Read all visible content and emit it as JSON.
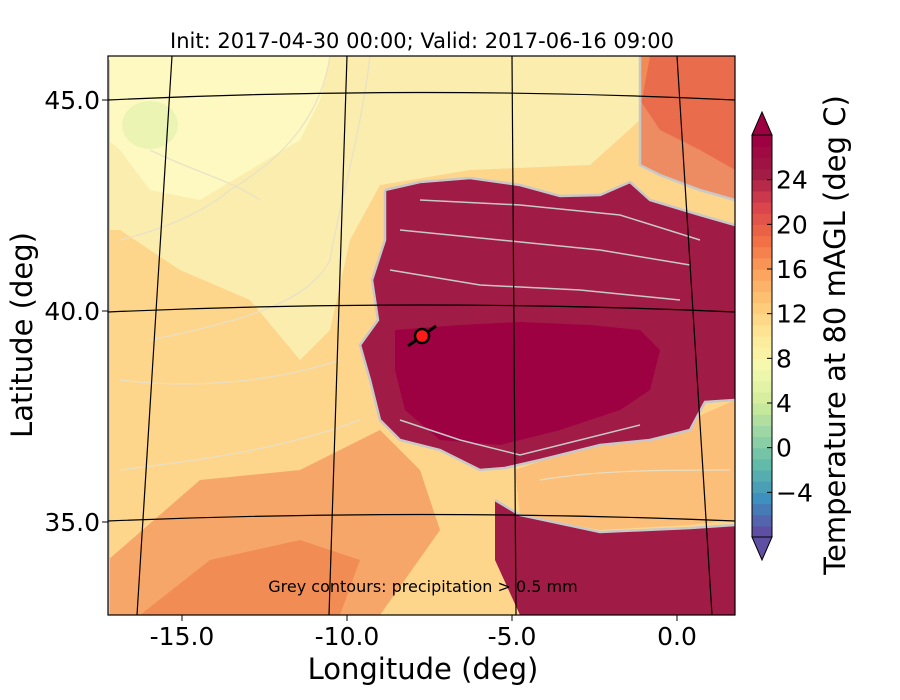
{
  "title": "Init: 2017-04-30 00:00; Valid: 2017-06-16 09:00",
  "map": {
    "xlabel": "Longitude (deg)",
    "ylabel": "Latitude (deg)",
    "x_ticks": [
      {
        "value": -15,
        "label": "-15.0"
      },
      {
        "value": -10,
        "label": "-10.0"
      },
      {
        "value": -5,
        "label": "-5.0"
      },
      {
        "value": 0,
        "label": "0.0"
      }
    ],
    "y_ticks": [
      {
        "value": 45,
        "label": "45.0"
      },
      {
        "value": 40,
        "label": "40.0"
      },
      {
        "value": 35,
        "label": "35.0"
      }
    ],
    "annotation": "Grey contours: precipitation > 0.5 mm",
    "marker": {
      "lon": -7.6,
      "lat": 39.4,
      "color": "#ff1a1a"
    }
  },
  "colorbar": {
    "label": "Temperature at 80 mAGL (deg C)",
    "min": -8,
    "max": 28,
    "tick_values": [
      -4,
      0,
      4,
      8,
      12,
      16,
      20,
      24
    ],
    "tick_labels": [
      "−4",
      "0",
      "4",
      "8",
      "12",
      "16",
      "20",
      "24"
    ],
    "colormap": "Spectral_r",
    "colors": [
      "#5e4fa2",
      "#3d8fbf",
      "#5fb9a9",
      "#98d5a4",
      "#d2ed9b",
      "#f4fab0",
      "#fee999",
      "#fdc877",
      "#fba05b",
      "#f06c44",
      "#d9444d",
      "#a01b45",
      "#9e0142"
    ]
  }
}
